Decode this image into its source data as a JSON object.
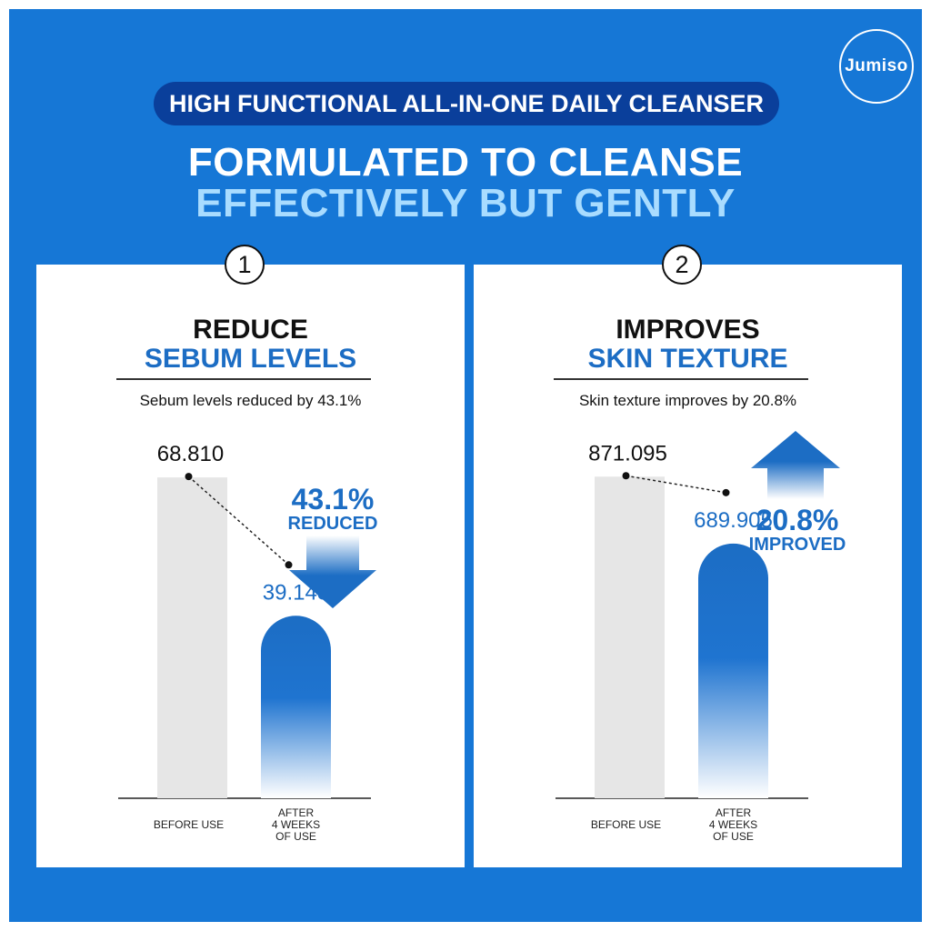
{
  "logo_text": "Jumiso",
  "pill_text": "HIGH FUNCTIONAL ALL-IN-ONE DAILY CLEANSER",
  "headline_line1": "FORMULATED TO CLEANSE",
  "headline_line2": "EFFECTIVELY BUT GENTLY",
  "colors": {
    "background": "#1677d6",
    "pill": "#0a3f9b",
    "accent": "#1c6dc4",
    "light_accent": "#a9dcff",
    "before_bar": "#e6e6e6"
  },
  "chart_data": [
    {
      "type": "bar",
      "number": "1",
      "title_line1": "REDUCE",
      "title_line2": "SEBUM LEVELS",
      "subtitle": "Sebum levels reduced by 43.1%",
      "categories": [
        "BEFORE USE",
        "AFTER 4 WEEKS OF USE"
      ],
      "values": [
        68.81,
        39.143
      ],
      "value_labels": [
        "68.810",
        "39.143"
      ],
      "change_percent": "43.1%",
      "change_label": "REDUCED",
      "direction": "down",
      "ylim": [
        0,
        78
      ]
    },
    {
      "type": "bar",
      "number": "2",
      "title_line1": "IMPROVES",
      "title_line2": "SKIN TEXTURE",
      "subtitle": "Skin texture improves by 20.8%",
      "categories": [
        "BEFORE USE",
        "AFTER 4 WEEKS OF USE"
      ],
      "values": [
        871.095,
        689.905
      ],
      "value_labels": [
        "871.095",
        "689.905"
      ],
      "change_percent": "20.8%",
      "change_label": "IMPROVED",
      "direction": "up",
      "ylim": [
        0,
        985
      ]
    }
  ]
}
